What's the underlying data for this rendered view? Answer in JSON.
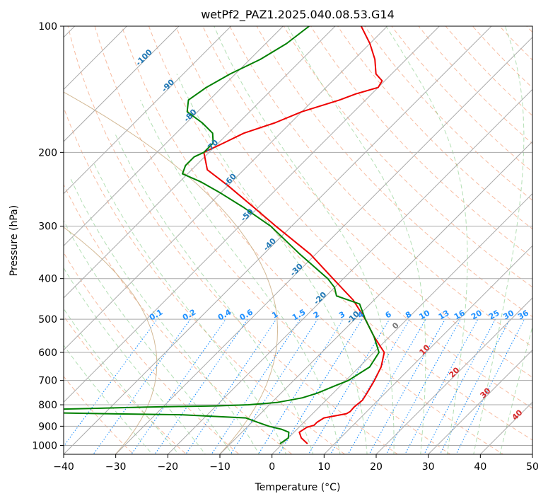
{
  "chart_data": {
    "type": "line",
    "title": "wetPf2_PAZ1.2025.040.08.53.G14",
    "xlabel": "Temperature (°C)",
    "ylabel": "Pressure (hPa)",
    "xlim": [
      -40,
      50
    ],
    "ylim": [
      1050,
      100
    ],
    "y_scale": "log",
    "skew_deg": 45,
    "x_ticks": [
      -40,
      -30,
      -20,
      -10,
      0,
      10,
      20,
      30,
      40,
      50
    ],
    "y_ticks": [
      100,
      200,
      300,
      400,
      500,
      600,
      700,
      800,
      900,
      1000
    ],
    "grid": true,
    "series": [
      {
        "color": "#ee0000",
        "pressure": [
          991,
          960,
          930,
          905,
          895,
          880,
          860,
          840,
          830,
          810,
          780,
          750,
          700,
          650,
          600,
          550,
          500,
          450,
          400,
          350,
          300,
          270,
          240,
          220,
          200,
          190,
          180,
          170,
          160,
          150,
          145,
          140,
          135,
          130,
          120,
          110,
          100
        ],
        "values": [
          4.8,
          2.5,
          1.0,
          1.5,
          2.5,
          2.5,
          3.0,
          6.5,
          6.8,
          6.7,
          7.0,
          6.5,
          5.5,
          4.2,
          2.0,
          -3.0,
          -8.0,
          -14.0,
          -22.0,
          -31.0,
          -43.0,
          -51.0,
          -60.0,
          -67.0,
          -71.0,
          -69.0,
          -67.0,
          -63.0,
          -60.0,
          -55.0,
          -53.0,
          -50.0,
          -50.5,
          -53.0,
          -56.0,
          -60.0,
          -65.0
        ]
      },
      {
        "color": "#008000",
        "pressure": [
          991,
          960,
          930,
          915,
          900,
          880,
          860,
          845,
          840,
          830,
          828,
          820,
          810,
          805,
          800,
          790,
          770,
          750,
          720,
          700,
          650,
          600,
          550,
          500,
          460,
          440,
          420,
          400,
          350,
          300,
          270,
          250,
          235,
          225,
          215,
          205,
          200,
          190,
          180,
          170,
          160,
          150,
          140,
          130,
          120,
          110,
          100
        ],
        "values": [
          -0.5,
          0.0,
          -1.0,
          -3.0,
          -6.0,
          -9.0,
          -12.0,
          -25.0,
          -40.0,
          -64.0,
          -60.0,
          -50.0,
          -33.0,
          -20.0,
          -14.0,
          -9.0,
          -5.0,
          -3.0,
          -1.0,
          0.5,
          2.0,
          1.0,
          -3.0,
          -8.0,
          -12.0,
          -18.0,
          -20.0,
          -23.0,
          -33.0,
          -44.0,
          -53.0,
          -60.0,
          -66.0,
          -71.0,
          -72.0,
          -72.0,
          -71.0,
          -71.0,
          -73.0,
          -77.0,
          -82.0,
          -84.0,
          -83.0,
          -81.0,
          -78.0,
          -76.0,
          -75.0
        ]
      }
    ],
    "isotherm_labels": [
      "-100",
      "-90",
      "-80",
      "-70",
      "-60",
      "-50",
      "-40",
      "-30",
      "-20",
      "-10",
      "0"
    ],
    "mixing_ratio_labels": [
      "0.1",
      "0.2",
      "0.4",
      "0.6",
      "1",
      "1.5",
      "2",
      "3",
      "4",
      "6",
      "8",
      "10",
      "13",
      "16",
      "20",
      "25",
      "30",
      "36"
    ],
    "moist_adiabat_labels": [
      "0",
      "10",
      "20",
      "30",
      "40"
    ]
  }
}
